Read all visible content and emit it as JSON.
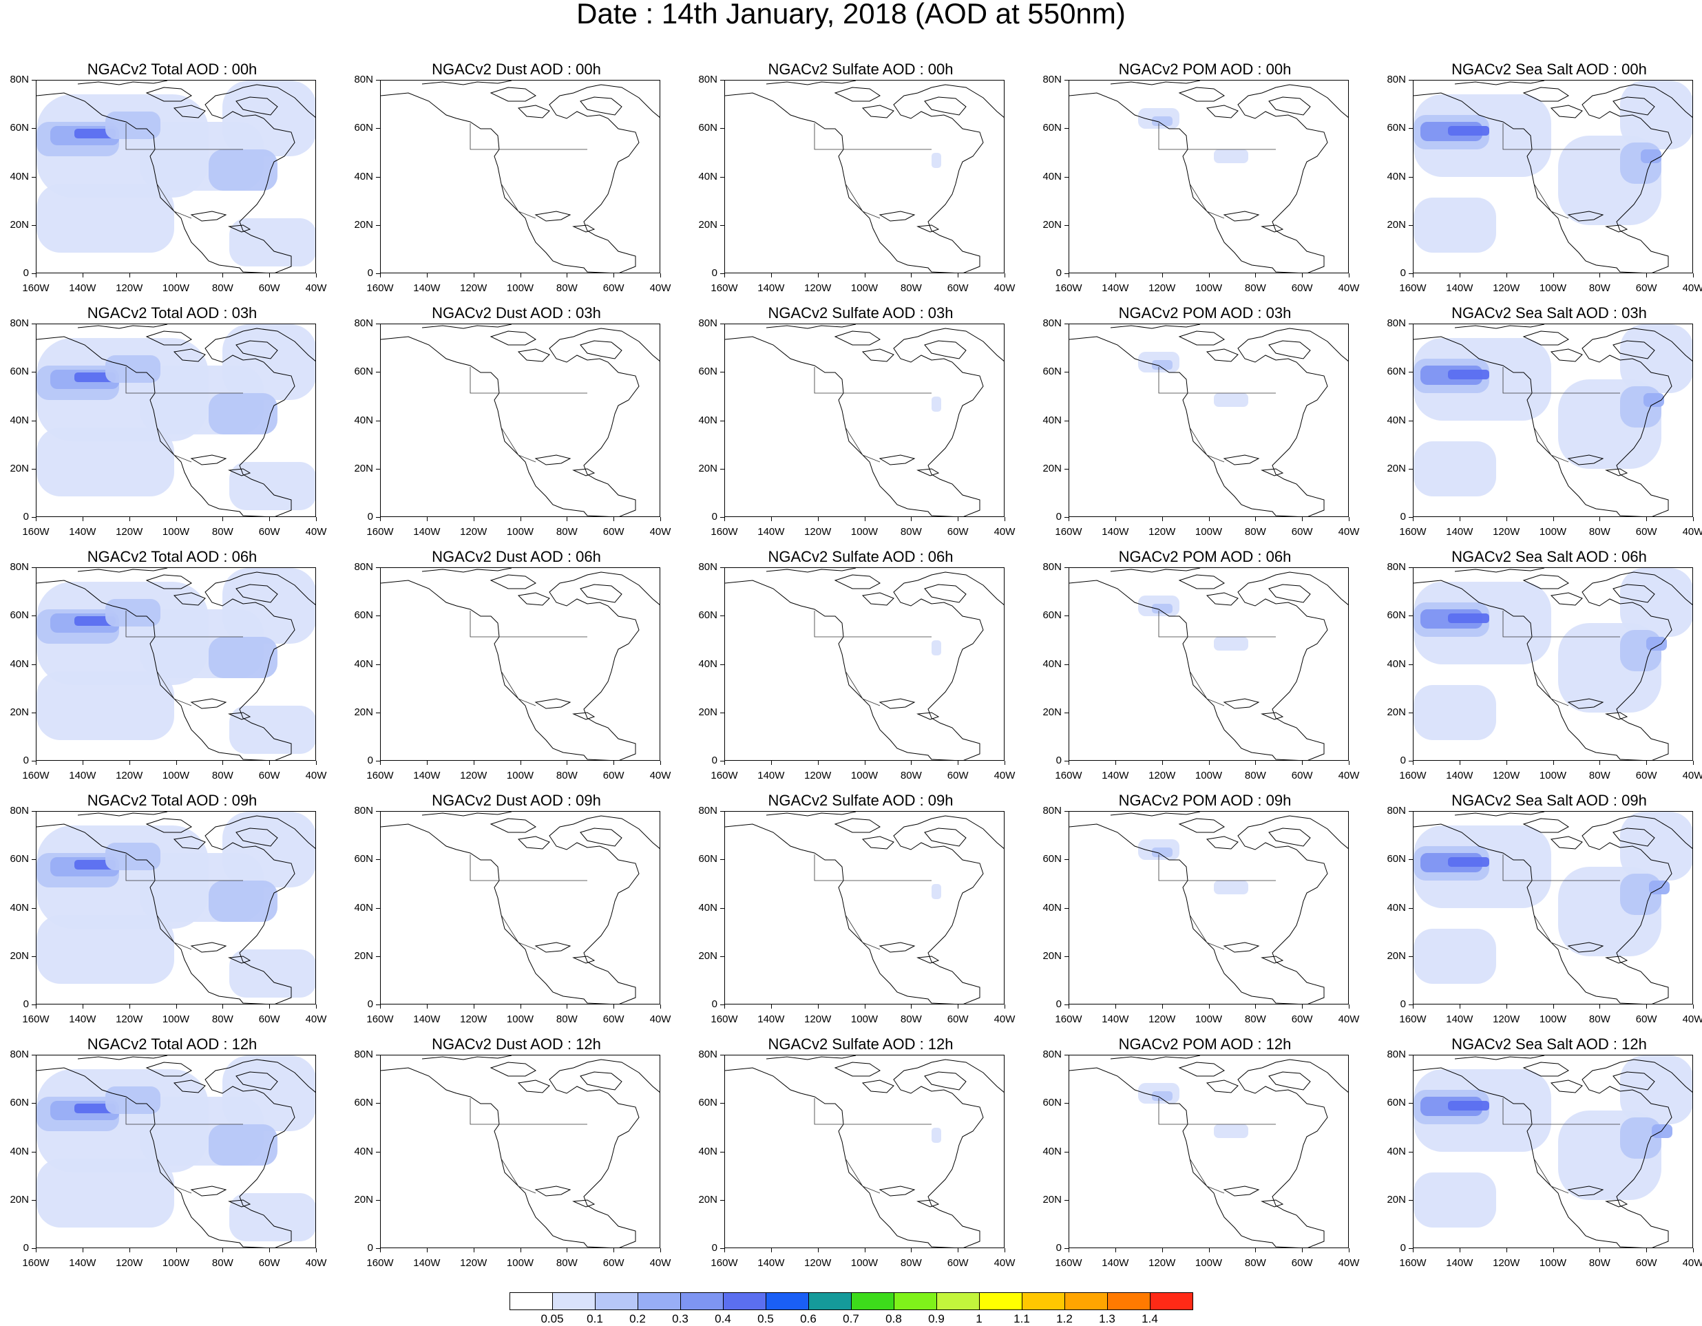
{
  "title": "Date : 14th January, 2018 (AOD at 550nm)",
  "lat_labels": [
    "80N",
    "60N",
    "40N",
    "20N",
    "0"
  ],
  "lon_labels": [
    "160W",
    "140W",
    "120W",
    "100W",
    "80W",
    "60W",
    "40W"
  ],
  "panels": [
    [
      {
        "title": "NGACv2 Total AOD : 00h",
        "product": "total"
      },
      {
        "title": "NGACv2 Dust AOD : 00h",
        "product": "dust"
      },
      {
        "title": "NGACv2 Sulfate AOD : 00h",
        "product": "sulfate"
      },
      {
        "title": "NGACv2 POM AOD : 00h",
        "product": "pom"
      },
      {
        "title": "NGACv2 Sea Salt AOD : 00h",
        "product": "seasalt"
      }
    ],
    [
      {
        "title": "NGACv2 Total AOD : 03h",
        "product": "total"
      },
      {
        "title": "NGACv2 Dust AOD : 03h",
        "product": "dust"
      },
      {
        "title": "NGACv2 Sulfate AOD : 03h",
        "product": "sulfate"
      },
      {
        "title": "NGACv2 POM AOD : 03h",
        "product": "pom"
      },
      {
        "title": "NGACv2 Sea Salt AOD : 03h",
        "product": "seasalt"
      }
    ],
    [
      {
        "title": "NGACv2 Total AOD : 06h",
        "product": "total"
      },
      {
        "title": "NGACv2 Dust AOD : 06h",
        "product": "dust"
      },
      {
        "title": "NGACv2 Sulfate AOD : 06h",
        "product": "sulfate"
      },
      {
        "title": "NGACv2 POM AOD : 06h",
        "product": "pom"
      },
      {
        "title": "NGACv2 Sea Salt AOD : 06h",
        "product": "seasalt"
      }
    ],
    [
      {
        "title": "NGACv2 Total AOD : 09h",
        "product": "total"
      },
      {
        "title": "NGACv2 Dust AOD : 09h",
        "product": "dust"
      },
      {
        "title": "NGACv2 Sulfate AOD : 09h",
        "product": "sulfate"
      },
      {
        "title": "NGACv2 POM AOD : 09h",
        "product": "pom"
      },
      {
        "title": "NGACv2 Sea Salt  AOD : 09h",
        "product": "seasalt"
      }
    ],
    [
      {
        "title": "NGACv2 Total AOD  : 12h",
        "product": "total"
      },
      {
        "title": "NGACv2 Dust AOD : 12h",
        "product": "dust"
      },
      {
        "title": "NGACv2 Sulfate AOD : 12h",
        "product": "sulfate"
      },
      {
        "title": "NGACv2 POM  AOD : 12h",
        "product": "pom"
      },
      {
        "title": "NGACv2 Sea Salt  AOD : 12h",
        "product": "seasalt"
      }
    ]
  ],
  "colorbar": {
    "labels": [
      "0.05",
      "0.1",
      "0.2",
      "0.3",
      "0.4",
      "0.5",
      "0.6",
      "0.7",
      "0.8",
      "0.9",
      "1",
      "1.1",
      "1.2",
      "1.3",
      "1.4"
    ],
    "colors": [
      "#ffffff",
      "#d9e2fb",
      "#b7c7f8",
      "#98aef6",
      "#7e95f2",
      "#5b6ff0",
      "#1a5ff5",
      "#159a9a",
      "#3ddb1b",
      "#7ff21a",
      "#c3f53c",
      "#ffff00",
      "#ffc700",
      "#ffa500",
      "#ff7a00",
      "#ff2a16"
    ]
  }
}
